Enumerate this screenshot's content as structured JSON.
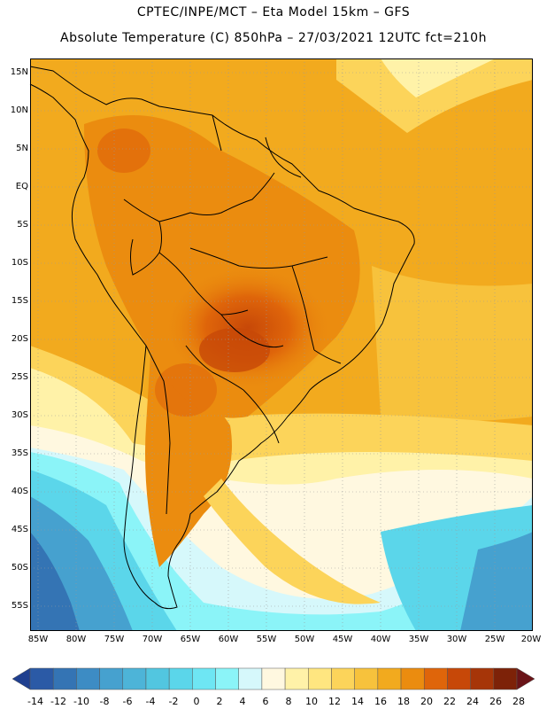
{
  "title": {
    "line1": "CPTEC/INPE/MCT –  Eta Model 15km – GFS",
    "line2": "Absolute Temperature (C) 850hPa – 27/03/2021 12UTC fct=210h"
  },
  "map": {
    "region": "South America",
    "variable": "Absolute Temperature",
    "level": "850hPa",
    "lat_labels": [
      "15N",
      "10N",
      "5N",
      "EQ",
      "5S",
      "10S",
      "15S",
      "20S",
      "25S",
      "30S",
      "35S",
      "40S",
      "45S",
      "50S",
      "55S"
    ],
    "lon_labels": [
      "85W",
      "80W",
      "75W",
      "70W",
      "65W",
      "60W",
      "55W",
      "50W",
      "45W",
      "40W",
      "35W",
      "30W",
      "25W",
      "20W"
    ]
  },
  "colorbar": {
    "labels": [
      "-14",
      "-12",
      "-10",
      "-8",
      "-6",
      "-4",
      "-2",
      "0",
      "2",
      "4",
      "6",
      "8",
      "10",
      "12",
      "14",
      "16",
      "18",
      "20",
      "22",
      "24",
      "26",
      "28"
    ],
    "colors": [
      "#1f3f8f",
      "#2b5aa6",
      "#3474b4",
      "#3d8cc4",
      "#46a1cf",
      "#4db4d8",
      "#52c6e0",
      "#5bd6ea",
      "#6ee6f3",
      "#8bf4f8",
      "#d6f8fb",
      "#fff8e0",
      "#fff2a8",
      "#ffe680",
      "#fcd45a",
      "#f7c23c",
      "#f2aa1e",
      "#eb8c0f",
      "#df650a",
      "#c74808",
      "#a63508",
      "#7d2208",
      "#6a1418"
    ]
  }
}
